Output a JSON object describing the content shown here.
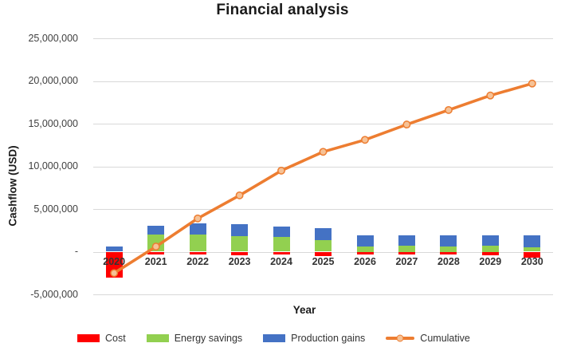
{
  "title": "Financial analysis",
  "axes": {
    "y_title": "Cashflow (USD)",
    "x_title": "Year",
    "y_ticks": [
      {
        "label": "25,000,000",
        "value": 25000000
      },
      {
        "label": "20,000,000",
        "value": 20000000
      },
      {
        "label": "15,000,000",
        "value": 15000000
      },
      {
        "label": "10,000,000",
        "value": 10000000
      },
      {
        "label": "5,000,000",
        "value": 5000000
      },
      {
        "label": "-",
        "value": 0
      },
      {
        "label": "-5,000,000",
        "value": -5000000
      }
    ]
  },
  "legend": [
    {
      "label": "Cost",
      "marker": "swatch",
      "color": "#FF0000"
    },
    {
      "label": "Energy savings",
      "marker": "swatch",
      "color": "#92D050"
    },
    {
      "label": "Production gains",
      "marker": "swatch",
      "color": "#4472C4"
    },
    {
      "label": "Cumulative",
      "marker": "line",
      "color": "#ED7D31",
      "marker_fill": "#F6C296"
    }
  ],
  "chart_data": {
    "type": "bar",
    "subtype": "stacked-bars-with-cumulative-line",
    "title": "Financial analysis",
    "xlabel": "Year",
    "ylabel": "Cashflow (USD)",
    "ylim": [
      -5000000,
      25000000
    ],
    "y_tick_step": 5000000,
    "grid": true,
    "legend_position": "bottom",
    "categories": [
      "2020",
      "2021",
      "2022",
      "2023",
      "2024",
      "2025",
      "2026",
      "2027",
      "2028",
      "2029",
      "2030"
    ],
    "series": [
      {
        "name": "Cost",
        "type": "bar",
        "color": "#FF0000",
        "values": [
          -3000000,
          -300000,
          -350000,
          -450000,
          -350000,
          -500000,
          -350000,
          -300000,
          -350000,
          -400000,
          -650000
        ]
      },
      {
        "name": "Energy savings",
        "type": "bar",
        "color": "#92D050",
        "values": [
          0,
          2050000,
          2000000,
          1850000,
          1700000,
          1350000,
          650000,
          700000,
          650000,
          700000,
          550000
        ]
      },
      {
        "name": "Production gains",
        "type": "bar",
        "color": "#4472C4",
        "values": [
          600000,
          1000000,
          1350000,
          1350000,
          1250000,
          1400000,
          1250000,
          1250000,
          1250000,
          1250000,
          1400000
        ]
      },
      {
        "name": "Cumulative",
        "type": "line",
        "color": "#ED7D31",
        "marker_fill": "#F6C296",
        "values": [
          -2500000,
          600000,
          3900000,
          6600000,
          9500000,
          11700000,
          13100000,
          14900000,
          16600000,
          18300000,
          19700000
        ]
      }
    ]
  },
  "colors": {
    "background": "#FFFFFF",
    "gridline": "#D9D9D9",
    "tick_text": "#404040",
    "title_text": "#1A1A1A"
  }
}
